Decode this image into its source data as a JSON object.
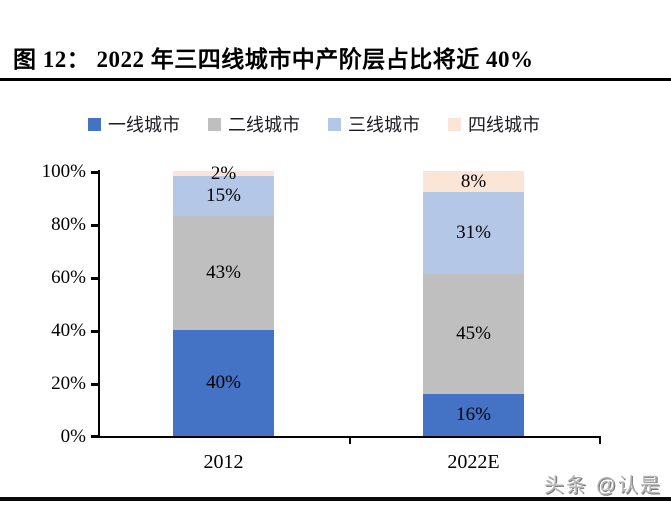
{
  "title": "图 12： 2022 年三四线城市中产阶层占比将近 40%",
  "watermark": "头条 @认是",
  "chart_data": {
    "type": "bar",
    "stacked": true,
    "title": "2022 年三四线城市中产阶层占比将近 40%",
    "categories": [
      "2012",
      "2022E"
    ],
    "series": [
      {
        "name": "一线城市",
        "color": "#4472C4",
        "values": [
          40,
          16
        ],
        "labels": [
          "40%",
          "16%"
        ]
      },
      {
        "name": "二线城市",
        "color": "#BFBFBF",
        "values": [
          43,
          45
        ],
        "labels": [
          "43%",
          "45%"
        ]
      },
      {
        "name": "三线城市",
        "color": "#B4C7E7",
        "values": [
          15,
          31
        ],
        "labels": [
          "15%",
          "31%"
        ]
      },
      {
        "name": "四线城市",
        "color": "#FBE5D6",
        "values": [
          2,
          8
        ],
        "labels": [
          "2%",
          "8%"
        ]
      }
    ],
    "ylim": [
      0,
      100
    ],
    "y_ticks": [
      "100%",
      "80%",
      "60%",
      "40%",
      "20%",
      "0%"
    ],
    "xlabel": "",
    "ylabel": "",
    "grid": false,
    "legend_position": "top"
  }
}
